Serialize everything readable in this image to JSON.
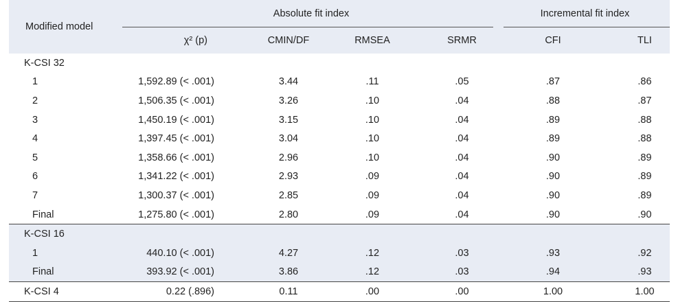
{
  "header": {
    "model_label": "Modified model",
    "absolute_group": "Absolute fit index",
    "incremental_group": "Incremental fit index",
    "columns": [
      "χ² (p)",
      "CMIN/DF",
      "RMSEA",
      "SRMR",
      "CFI",
      "TLI"
    ]
  },
  "groups": [
    {
      "name": "K-CSI 32",
      "rows": [
        {
          "label": "1",
          "chi": "1,592.89 (< .001)",
          "cmin": "3.44",
          "rmsea": ".11",
          "srmr": ".05",
          "cfi": ".87",
          "tli": ".86"
        },
        {
          "label": "2",
          "chi": "1,506.35 (< .001)",
          "cmin": "3.26",
          "rmsea": ".10",
          "srmr": ".04",
          "cfi": ".88",
          "tli": ".87"
        },
        {
          "label": "3",
          "chi": "1,450.19 (< .001)",
          "cmin": "3.15",
          "rmsea": ".10",
          "srmr": ".04",
          "cfi": ".89",
          "tli": ".88"
        },
        {
          "label": "4",
          "chi": "1,397.45 (< .001)",
          "cmin": "3.04",
          "rmsea": ".10",
          "srmr": ".04",
          "cfi": ".89",
          "tli": ".88"
        },
        {
          "label": "5",
          "chi": "1,358.66 (< .001)",
          "cmin": "2.96",
          "rmsea": ".10",
          "srmr": ".04",
          "cfi": ".90",
          "tli": ".89"
        },
        {
          "label": "6",
          "chi": "1,341.22 (< .001)",
          "cmin": "2.93",
          "rmsea": ".09",
          "srmr": ".04",
          "cfi": ".90",
          "tli": ".89"
        },
        {
          "label": "7",
          "chi": "1,300.37 (< .001)",
          "cmin": "2.85",
          "rmsea": ".09",
          "srmr": ".04",
          "cfi": ".90",
          "tli": ".89"
        },
        {
          "label": "Final",
          "chi": "1,275.80 (< .001)",
          "cmin": "2.80",
          "rmsea": ".09",
          "srmr": ".04",
          "cfi": ".90",
          "tli": ".90"
        }
      ]
    },
    {
      "name": "K-CSI 16",
      "rows": [
        {
          "label": "1",
          "chi": "440.10 (< .001)",
          "cmin": "4.27",
          "rmsea": ".12",
          "srmr": ".03",
          "cfi": ".93",
          "tli": ".92"
        },
        {
          "label": "Final",
          "chi": "393.92 (< .001)",
          "cmin": "3.86",
          "rmsea": ".12",
          "srmr": ".03",
          "cfi": ".94",
          "tli": ".93"
        }
      ]
    }
  ],
  "single_row": {
    "label": "K-CSI 4",
    "chi": "0.22 (.896)",
    "cmin": "0.11",
    "rmsea": ".00",
    "srmr": ".00",
    "cfi": "1.00",
    "tli": "1.00"
  }
}
